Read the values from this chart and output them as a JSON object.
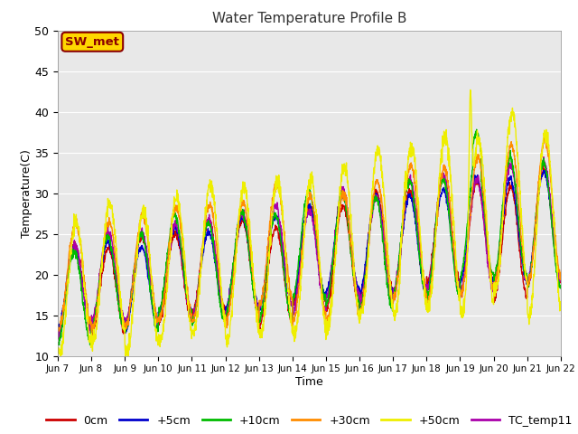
{
  "title": "Water Temperature Profile B",
  "xlabel": "Time",
  "ylabel": "Temperature(C)",
  "ylim": [
    10,
    50
  ],
  "annotation": "SW_met",
  "annotation_color": "#8B0000",
  "annotation_bg": "#FFD700",
  "series_labels": [
    "0cm",
    "+5cm",
    "+10cm",
    "+30cm",
    "+50cm",
    "TC_temp11"
  ],
  "series_colors": [
    "#CC0000",
    "#0000CC",
    "#00BB00",
    "#FF8C00",
    "#EEEE00",
    "#AA00AA"
  ],
  "xtick_labels": [
    "Jun 7",
    "Jun 8",
    "Jun 9",
    "Jun 10",
    "Jun 11",
    "Jun 12",
    "Jun 13",
    "Jun 14",
    "Jun 15",
    "Jun 16",
    "Jun 17",
    "Jun 18",
    "Jun 19",
    "Jun 20",
    "Jun 21",
    "Jun 22"
  ],
  "n_days": 15,
  "points_per_day": 144,
  "bg_color": "#E8E8E8",
  "grid_color": "#FFFFFF",
  "figsize": [
    6.4,
    4.8
  ],
  "dpi": 100
}
